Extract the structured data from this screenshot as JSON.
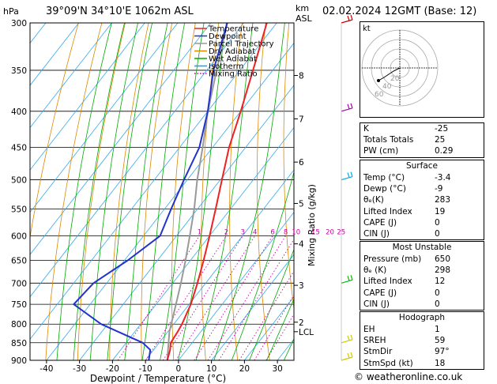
{
  "header": {
    "location": "39°09'N  34°10'E  1062m  ASL",
    "datetime": "02.02.2024  12GMT  (Base: 12)",
    "hpa_label": "hPa",
    "km_label": "km",
    "asl_label": "ASL"
  },
  "legend": [
    {
      "label": "Temperature",
      "color": "#ee2222"
    },
    {
      "label": "Dewpoint",
      "color": "#2233cc"
    },
    {
      "label": "Parcel Trajectory",
      "color": "#999999"
    },
    {
      "label": "Dry Adiabat",
      "color": "#dd8800"
    },
    {
      "label": "Wet Adiabat",
      "color": "#00aa00"
    },
    {
      "label": "Isotherm",
      "color": "#00aaee"
    },
    {
      "label": "Mixing Ratio",
      "color": "#cc00aa"
    }
  ],
  "chart_data": {
    "type": "line",
    "xlabel": "Dewpoint / Temperature (°C)",
    "ylabel_right": "Mixing Ratio (g/kg)",
    "x_ticks": [
      -40,
      -30,
      -20,
      -10,
      0,
      10,
      20,
      30
    ],
    "pressure_ticks": [
      300,
      350,
      400,
      450,
      500,
      550,
      600,
      650,
      700,
      750,
      800,
      850,
      900
    ],
    "km_ticks": [
      {
        "label": "8",
        "p": 356
      },
      {
        "label": "7",
        "p": 410
      },
      {
        "label": "6",
        "p": 472
      },
      {
        "label": "5",
        "p": 540
      },
      {
        "label": "4",
        "p": 616
      },
      {
        "label": "3",
        "p": 705
      },
      {
        "label": "2",
        "p": 795
      },
      {
        "label": "LCL",
        "p": 820
      }
    ],
    "mixing_ratio_labels": [
      "1",
      "2",
      "3",
      "4",
      "6",
      "8",
      "10",
      "15",
      "20",
      "25"
    ],
    "mixing_ratio_values": [
      1,
      2,
      3,
      4,
      6,
      8,
      10,
      15,
      20,
      25
    ],
    "mixing_ratio_label_p": 600,
    "temperature": [
      {
        "p": 900,
        "t": -3.4
      },
      {
        "p": 870,
        "t": -5
      },
      {
        "p": 850,
        "t": -6.5
      },
      {
        "p": 820,
        "t": -7
      },
      {
        "p": 800,
        "t": -7.5
      },
      {
        "p": 750,
        "t": -9.5
      },
      {
        "p": 700,
        "t": -12.5
      },
      {
        "p": 650,
        "t": -16
      },
      {
        "p": 600,
        "t": -20
      },
      {
        "p": 550,
        "t": -24.5
      },
      {
        "p": 500,
        "t": -29.5
      },
      {
        "p": 450,
        "t": -35
      },
      {
        "p": 400,
        "t": -40
      },
      {
        "p": 350,
        "t": -46
      },
      {
        "p": 300,
        "t": -53
      }
    ],
    "dewpoint": [
      {
        "p": 900,
        "t": -9
      },
      {
        "p": 870,
        "t": -11
      },
      {
        "p": 850,
        "t": -15
      },
      {
        "p": 800,
        "t": -32
      },
      {
        "p": 750,
        "t": -45
      },
      {
        "p": 700,
        "t": -44
      },
      {
        "p": 650,
        "t": -39
      },
      {
        "p": 600,
        "t": -35
      },
      {
        "p": 550,
        "t": -38
      },
      {
        "p": 500,
        "t": -41
      },
      {
        "p": 450,
        "t": -44
      },
      {
        "p": 400,
        "t": -50
      },
      {
        "p": 350,
        "t": -58
      },
      {
        "p": 300,
        "t": -65
      }
    ],
    "parcel": [
      {
        "p": 900,
        "t": -3.4
      },
      {
        "p": 820,
        "t": -9.5
      },
      {
        "p": 750,
        "t": -14
      },
      {
        "p": 700,
        "t": -17.5
      },
      {
        "p": 650,
        "t": -21.5
      },
      {
        "p": 600,
        "t": -26
      },
      {
        "p": 550,
        "t": -31
      },
      {
        "p": 500,
        "t": -37
      },
      {
        "p": 450,
        "t": -43
      },
      {
        "p": 400,
        "t": -50
      },
      {
        "p": 350,
        "t": -57
      },
      {
        "p": 300,
        "t": -65
      }
    ],
    "wind_barbs": [
      {
        "p": 300,
        "color": "#cc0000"
      },
      {
        "p": 400,
        "color": "#aa00aa"
      },
      {
        "p": 500,
        "color": "#00aadd"
      },
      {
        "p": 700,
        "color": "#00bb00"
      },
      {
        "p": 850,
        "color": "#cccc00"
      },
      {
        "p": 900,
        "color": "#cccc00"
      }
    ]
  },
  "hodograph": {
    "unit_label": "kt",
    "ring_labels": [
      "20",
      "40",
      "60"
    ]
  },
  "indices": {
    "top": [
      {
        "key": "K",
        "value": "-25"
      },
      {
        "key": "Totals Totals",
        "value": "25"
      },
      {
        "key": "PW (cm)",
        "value": "0.29"
      }
    ],
    "surface_title": "Surface",
    "surface": [
      {
        "key": "Temp (°C)",
        "value": "-3.4"
      },
      {
        "key": "Dewp (°C)",
        "value": "-9"
      },
      {
        "key": "θₑ(K)",
        "value": "283"
      },
      {
        "key": "Lifted Index",
        "value": "19"
      },
      {
        "key": "CAPE (J)",
        "value": "0"
      },
      {
        "key": "CIN (J)",
        "value": "0"
      }
    ],
    "unstable_title": "Most Unstable",
    "unstable": [
      {
        "key": "Pressure (mb)",
        "value": "650"
      },
      {
        "key": "θₑ (K)",
        "value": "298"
      },
      {
        "key": "Lifted Index",
        "value": "12"
      },
      {
        "key": "CAPE (J)",
        "value": "0"
      },
      {
        "key": "CIN (J)",
        "value": "0"
      }
    ],
    "hodograph_title": "Hodograph",
    "hodo": [
      {
        "key": "EH",
        "value": "1"
      },
      {
        "key": "SREH",
        "value": "59"
      },
      {
        "key": "StmDir",
        "value": "97°"
      },
      {
        "key": "StmSpd (kt)",
        "value": "18"
      }
    ]
  },
  "footer": "© weatheronline.co.uk"
}
